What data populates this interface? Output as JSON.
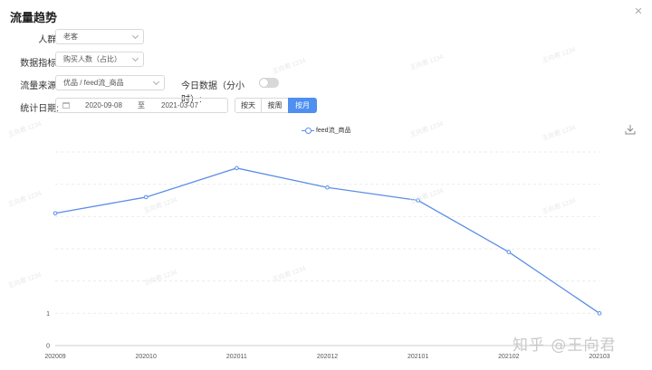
{
  "dialog": {
    "title": "流量趋势",
    "close_icon": "close-icon"
  },
  "filters": {
    "crowd": {
      "label": "人群:",
      "value": "老客"
    },
    "metric": {
      "label": "数据指标:",
      "value": "购买人数（占比）"
    },
    "source": {
      "label": "流量来源:",
      "value": "优品 / feed流_商品"
    },
    "today": {
      "label": "今日数据（分小时）:",
      "enabled": false
    },
    "date": {
      "label": "统计日期:",
      "start": "2020-09-08",
      "separator": "至",
      "end": "2021-03-07"
    },
    "granularity": {
      "options": [
        "按天",
        "按周",
        "按月"
      ],
      "selected": "按月"
    }
  },
  "watermark_text": "王向君 1234",
  "brand_watermark": "知乎 @王向君",
  "accent_color": "#4e8ff0",
  "chart_data": {
    "type": "line",
    "categories": [
      "202009",
      "202010",
      "202011",
      "202012",
      "202101",
      "202102",
      "202103"
    ],
    "series": [
      {
        "name": "feed流_商品",
        "color": "#5b8ee6",
        "values": [
          4.1,
          4.6,
          5.5,
          4.9,
          4.5,
          2.9,
          1.0
        ]
      }
    ],
    "ylim": [
      0,
      6
    ],
    "y_tick_labels": [
      "0",
      "1",
      "",
      "",
      "",
      "",
      ""
    ],
    "legend": "top-center",
    "grid": true
  }
}
